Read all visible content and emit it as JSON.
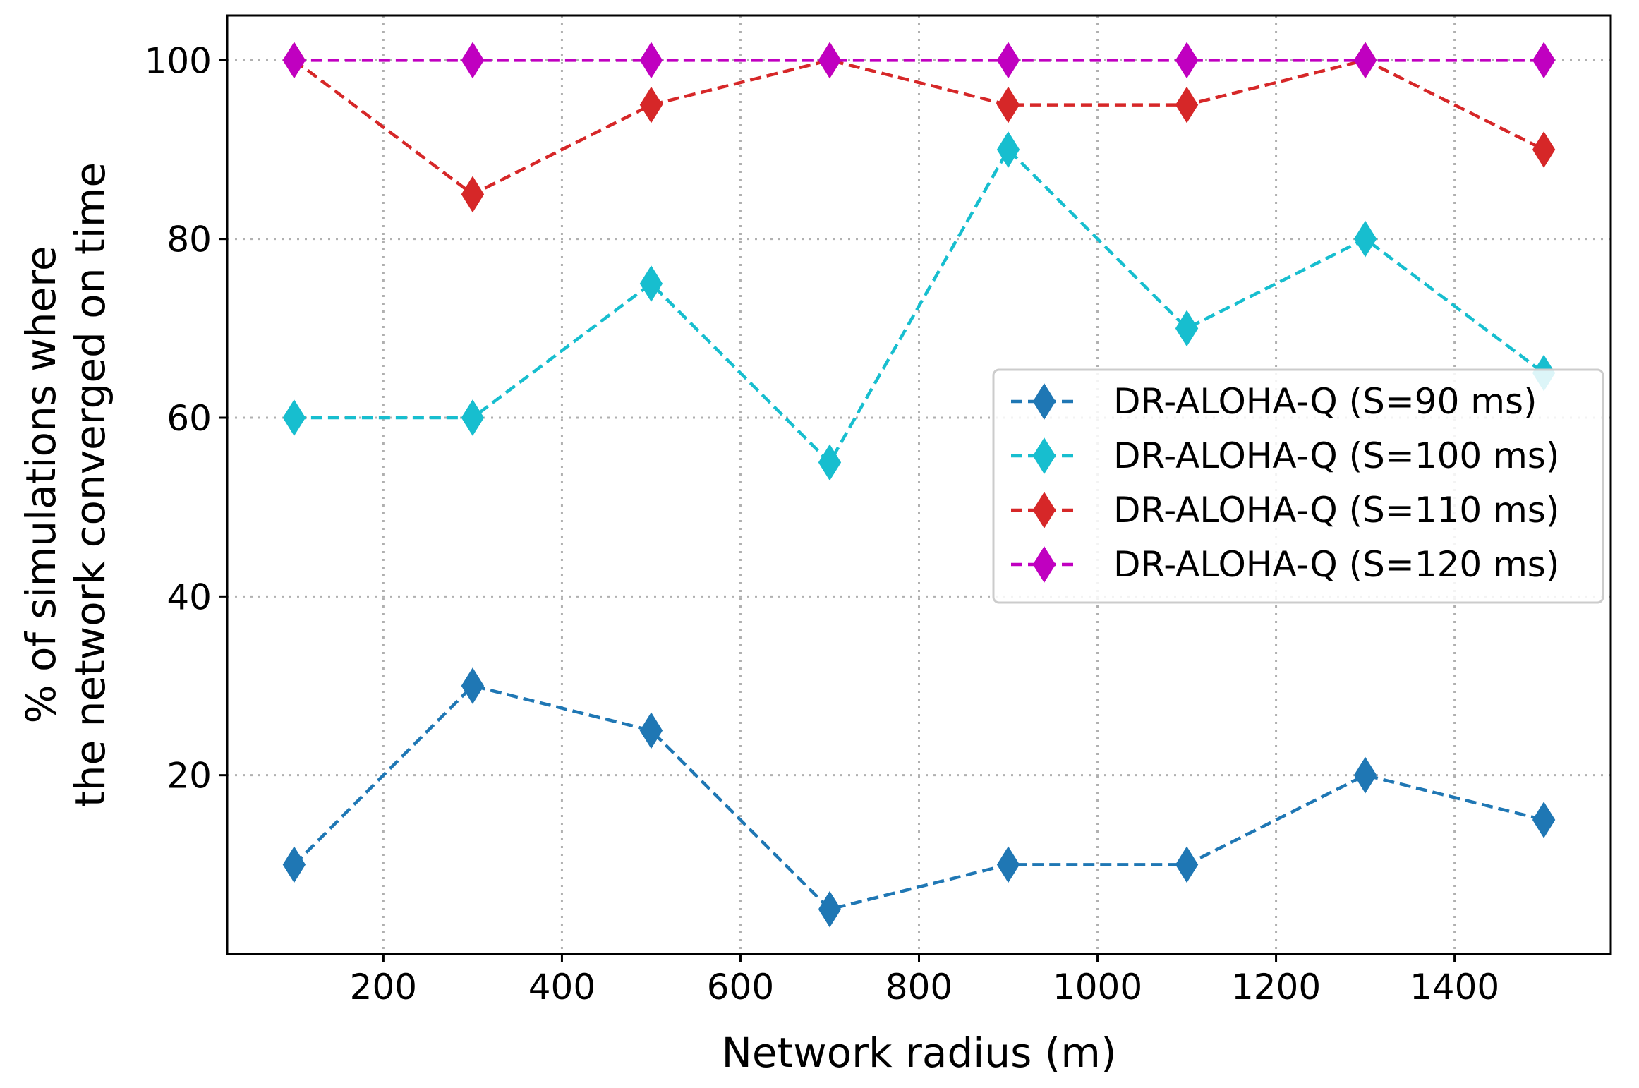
{
  "chart_data": {
    "type": "line",
    "title": "",
    "xlabel": "Network radius (m)",
    "ylabel_line1": "% of simulations where",
    "ylabel_line2": "the network converged on time",
    "x": [
      100,
      300,
      500,
      700,
      900,
      1100,
      1300,
      1500
    ],
    "xlim": [
      25,
      1575
    ],
    "ylim": [
      0,
      105
    ],
    "xticks": [
      200,
      400,
      600,
      800,
      1000,
      1200,
      1400
    ],
    "yticks": [
      20,
      40,
      60,
      80,
      100
    ],
    "grid": true,
    "legend_position": "center-right",
    "series": [
      {
        "name": "DR-ALOHA-Q (S=90 ms)",
        "color": "#1f77b4",
        "values": [
          10,
          30,
          25,
          5,
          10,
          10,
          20,
          15
        ]
      },
      {
        "name": "DR-ALOHA-Q (S=100 ms)",
        "color": "#17becf",
        "values": [
          60,
          60,
          75,
          55,
          90,
          70,
          80,
          65
        ]
      },
      {
        "name": "DR-ALOHA-Q (S=110 ms)",
        "color": "#d62728",
        "values": [
          100,
          85,
          95,
          100,
          95,
          95,
          100,
          90
        ]
      },
      {
        "name": "DR-ALOHA-Q (S=120 ms)",
        "color": "#c000c0",
        "values": [
          100,
          100,
          100,
          100,
          100,
          100,
          100,
          100
        ]
      }
    ]
  }
}
